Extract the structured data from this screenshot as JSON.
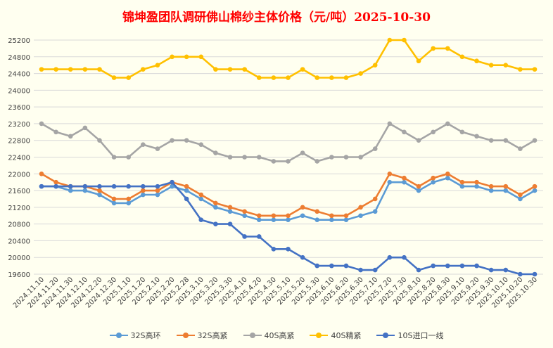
{
  "chart_data": {
    "type": "line",
    "title": "锦坤盈团队调研佛山棉纱主体价格（元/吨）2025-10-30",
    "categories": [
      "2024.11.10",
      "2024.11.20",
      "2024.11.30",
      "2024.12.10",
      "2024.12.20",
      "2024.12.30",
      "2025.1.10",
      "2025.1.20",
      "2025.2.10",
      "2025.2.20",
      "2025.2.28",
      "2025.3.10",
      "2025.3.20",
      "2025.3.30",
      "2025.4.10",
      "2025.4.20",
      "2025.4.30",
      "2025.5.10",
      "2025.5.20",
      "2025.5.30",
      "2025.6.10",
      "2025.6.20",
      "2025.6.30",
      "2025.7.10",
      "2025.7.20",
      "2025.7.30",
      "2025.8.10",
      "2025.8.20",
      "2025.8.30",
      "2025.9.10",
      "2025.9.20",
      "2025.9.30",
      "2025.10.10",
      "2025.10.20",
      "2025.10.30"
    ],
    "ylim": [
      19600,
      25200
    ],
    "yticks": [
      19600,
      20000,
      20400,
      20800,
      21200,
      21600,
      22000,
      22400,
      22800,
      23200,
      23600,
      24000,
      24400,
      24800,
      25200
    ],
    "grid": true,
    "legend_position": "bottom",
    "series": [
      {
        "name": "32S高环",
        "color": "#5b9bd5",
        "values": [
          21700,
          21700,
          21600,
          21600,
          21500,
          21300,
          21300,
          21500,
          21500,
          21700,
          21600,
          21400,
          21200,
          21100,
          21000,
          20900,
          20900,
          20900,
          21000,
          20900,
          20900,
          20900,
          21000,
          21100,
          21800,
          21800,
          21600,
          21800,
          21900,
          21700,
          21700,
          21600,
          21600,
          21400,
          21600
        ]
      },
      {
        "name": "32S高紧",
        "color": "#ed7d31",
        "values": [
          22000,
          21800,
          21700,
          21700,
          21600,
          21400,
          21400,
          21600,
          21600,
          21800,
          21700,
          21500,
          21300,
          21200,
          21100,
          21000,
          21000,
          21000,
          21200,
          21100,
          21000,
          21000,
          21200,
          21400,
          22000,
          21900,
          21700,
          21900,
          22000,
          21800,
          21800,
          21700,
          21700,
          21500,
          21700
        ]
      },
      {
        "name": "40S高紧",
        "color": "#a5a5a5",
        "values": [
          23200,
          23000,
          22900,
          23100,
          22800,
          22400,
          22400,
          22700,
          22600,
          22800,
          22800,
          22700,
          22500,
          22400,
          22400,
          22400,
          22300,
          22300,
          22500,
          22300,
          22400,
          22400,
          22400,
          22600,
          23200,
          23000,
          22800,
          23000,
          23200,
          23000,
          22900,
          22800,
          22800,
          22600,
          22800
        ]
      },
      {
        "name": "40S精紧",
        "color": "#ffc000",
        "values": [
          24500,
          24500,
          24500,
          24500,
          24500,
          24300,
          24300,
          24500,
          24600,
          24800,
          24800,
          24800,
          24500,
          24500,
          24500,
          24300,
          24300,
          24300,
          24500,
          24300,
          24300,
          24300,
          24400,
          24600,
          25200,
          25200,
          24700,
          25000,
          25000,
          24800,
          24700,
          24600,
          24600,
          24500,
          24500
        ]
      },
      {
        "name": "10S进口一线",
        "color": "#4472c4",
        "values": [
          21700,
          21700,
          21700,
          21700,
          21700,
          21700,
          21700,
          21700,
          21700,
          21800,
          21400,
          20900,
          20800,
          20800,
          20500,
          20500,
          20200,
          20200,
          20000,
          19800,
          19800,
          19800,
          19700,
          19700,
          20000,
          20000,
          19700,
          19800,
          19800,
          19800,
          19800,
          19700,
          19700,
          19600,
          19600
        ]
      }
    ]
  }
}
